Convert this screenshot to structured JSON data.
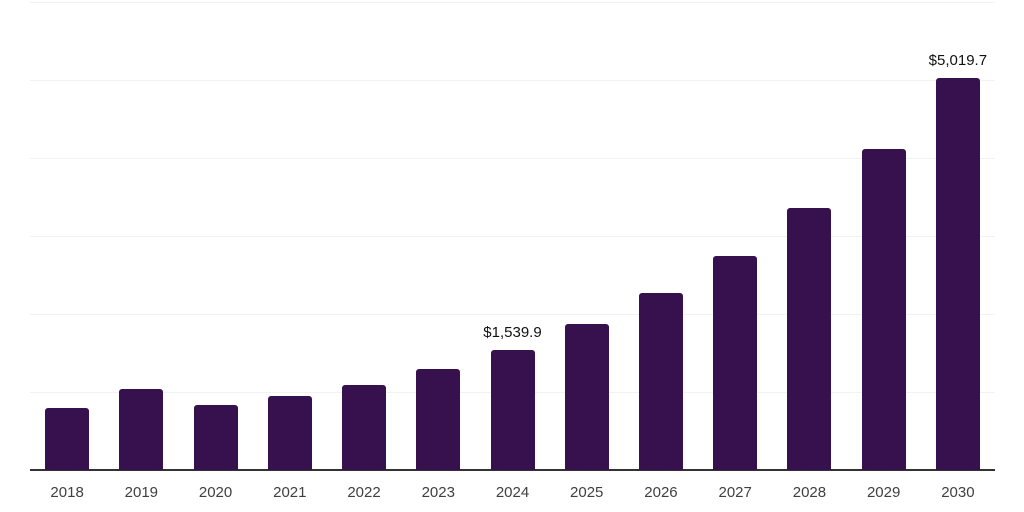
{
  "chart_data": {
    "type": "bar",
    "title": "",
    "xlabel": "",
    "ylabel": "",
    "categories": [
      "2018",
      "2019",
      "2020",
      "2021",
      "2022",
      "2023",
      "2024",
      "2025",
      "2026",
      "2027",
      "2028",
      "2029",
      "2030"
    ],
    "values": [
      790,
      1040,
      830,
      945,
      1095,
      1290,
      1539.9,
      1875,
      2265,
      2750,
      3365,
      4120,
      5019.7
    ],
    "data_labels": {
      "2024": "$1,539.9",
      "2030": "$5,019.7"
    },
    "ylim": [
      0,
      6000
    ],
    "gridline_interval": 1000,
    "grid": "horizontal-only",
    "legend_position": "none",
    "y_tick_labels_visible": false,
    "colors": {
      "bar": "#36114d",
      "gridline": "#f2f2f2",
      "axis_line": "#333333",
      "tick_label": "#404040",
      "data_label": "#111111",
      "background": "#ffffff"
    }
  }
}
